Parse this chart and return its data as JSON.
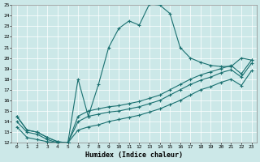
{
  "title": "",
  "xlabel": "Humidex (Indice chaleur)",
  "bg_color": "#cce8e8",
  "line_color": "#1a7070",
  "xlim": [
    -0.5,
    23.5
  ],
  "ylim": [
    12,
    25
  ],
  "xticks": [
    0,
    1,
    2,
    3,
    4,
    5,
    6,
    7,
    8,
    9,
    10,
    11,
    12,
    13,
    14,
    15,
    16,
    17,
    18,
    19,
    20,
    21,
    22,
    23
  ],
  "yticks": [
    12,
    13,
    14,
    15,
    16,
    17,
    18,
    19,
    20,
    21,
    22,
    23,
    24,
    25
  ],
  "line1_x": [
    0,
    1,
    2,
    3,
    4,
    5,
    6,
    7,
    8,
    9,
    10,
    11,
    12,
    13,
    14,
    15,
    16,
    17,
    18,
    19,
    20,
    21,
    22,
    23
  ],
  "line1_y": [
    14.5,
    13.2,
    13.0,
    12.5,
    12.1,
    12.0,
    18.0,
    14.5,
    17.5,
    21.0,
    22.8,
    23.5,
    23.1,
    25.1,
    25.0,
    24.2,
    21.0,
    20.0,
    19.6,
    19.3,
    19.2,
    19.2,
    20.0,
    19.8
  ],
  "line2_x": [
    0,
    1,
    2,
    3,
    4,
    5,
    6,
    7,
    8,
    9,
    10,
    11,
    12,
    13,
    14,
    15,
    16,
    17,
    18,
    19,
    20,
    21,
    22,
    23
  ],
  "line2_y": [
    14.5,
    13.2,
    13.0,
    12.5,
    12.1,
    12.0,
    14.5,
    15.0,
    15.2,
    15.4,
    15.5,
    15.7,
    15.9,
    16.2,
    16.5,
    17.0,
    17.5,
    18.0,
    18.4,
    18.7,
    19.0,
    19.3,
    18.5,
    19.8
  ],
  "line3_x": [
    0,
    1,
    2,
    3,
    4,
    5,
    6,
    7,
    8,
    9,
    10,
    11,
    12,
    13,
    14,
    15,
    16,
    17,
    18,
    19,
    20,
    21,
    22,
    23
  ],
  "line3_y": [
    14.0,
    13.0,
    12.8,
    12.3,
    12.0,
    12.0,
    14.0,
    14.5,
    14.7,
    14.9,
    15.0,
    15.2,
    15.4,
    15.7,
    16.0,
    16.5,
    17.0,
    17.5,
    17.9,
    18.2,
    18.6,
    18.9,
    18.2,
    19.5
  ],
  "line4_x": [
    0,
    1,
    2,
    3,
    4,
    5,
    6,
    7,
    8,
    9,
    10,
    11,
    12,
    13,
    14,
    15,
    16,
    17,
    18,
    19,
    20,
    21,
    22,
    23
  ],
  "line4_y": [
    13.5,
    12.5,
    12.3,
    12.1,
    12.0,
    12.0,
    13.2,
    13.5,
    13.7,
    14.0,
    14.2,
    14.4,
    14.6,
    14.9,
    15.2,
    15.6,
    16.0,
    16.5,
    17.0,
    17.3,
    17.7,
    18.0,
    17.4,
    18.8
  ],
  "marker_size": 3,
  "linewidth": 0.8
}
